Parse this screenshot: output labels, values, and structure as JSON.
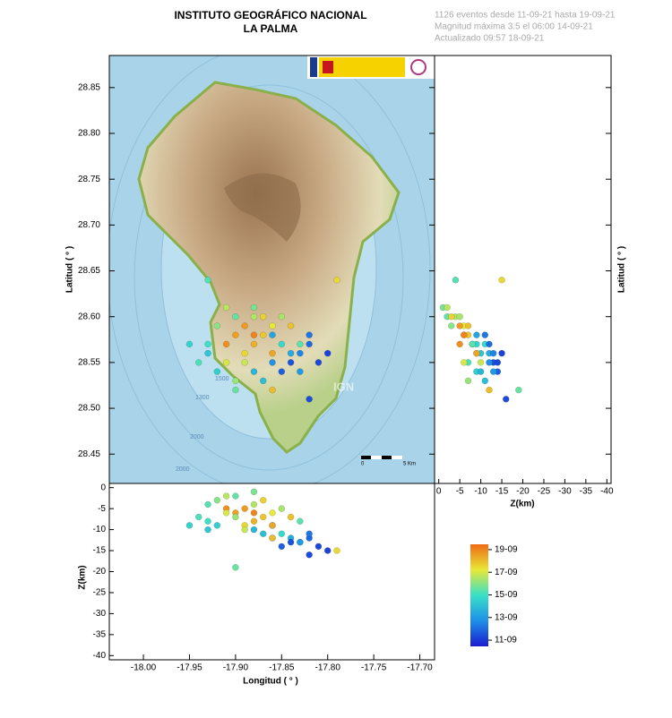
{
  "header": {
    "title": "INSTITUTO GEOGRÁFICO NACIONAL",
    "subtitle": "LA PALMA",
    "info": [
      "1126 eventos desde 11-09-21 hasta 19-09-21",
      "Magnitud máxima 3.5 el 06:00 14-09-21",
      "Actualizado   09:57  18-09-21"
    ]
  },
  "map": {
    "lat_label": "Latitud ( ° )",
    "lon_label": "Longitud ( ° )",
    "z_label": "Z(km)",
    "xlim": [
      -18.037,
      -17.684
    ],
    "ylim": [
      28.418,
      28.885
    ],
    "zlim": [
      1,
      -41
    ],
    "xticks": [
      {
        "value": -18.0,
        "label": "-18.00"
      },
      {
        "value": -17.95,
        "label": "-17.95"
      },
      {
        "value": -17.9,
        "label": "-17.90"
      },
      {
        "value": -17.85,
        "label": "-17.85"
      },
      {
        "value": -17.8,
        "label": "-17.80"
      },
      {
        "value": -17.75,
        "label": "-17.75"
      },
      {
        "value": -17.7,
        "label": "-17.70"
      }
    ],
    "yticks": [
      {
        "value": 28.45,
        "label": "28.45"
      },
      {
        "value": 28.5,
        "label": "28.50"
      },
      {
        "value": 28.55,
        "label": "28.55"
      },
      {
        "value": 28.6,
        "label": "28.60"
      },
      {
        "value": 28.65,
        "label": "28.65"
      },
      {
        "value": 28.7,
        "label": "28.70"
      },
      {
        "value": 28.75,
        "label": "28.75"
      },
      {
        "value": 28.8,
        "label": "28.80"
      },
      {
        "value": 28.85,
        "label": "28.85"
      }
    ],
    "zticks": [
      0,
      -5,
      -10,
      -15,
      -20,
      -25,
      -30,
      -35,
      -40
    ],
    "contour_labels": [
      "1500",
      "1300",
      "2000",
      "2000"
    ],
    "watermark": "IGN",
    "scale_labels": [
      "0",
      "5 Km"
    ],
    "points": [
      {
        "lon": -17.9,
        "lat": 28.58,
        "depth": -6,
        "day": 18.5
      },
      {
        "lon": -17.88,
        "lat": 28.57,
        "depth": -8,
        "day": 18.2
      },
      {
        "lon": -17.87,
        "lat": 28.58,
        "depth": -7,
        "day": 17.8
      },
      {
        "lon": -17.89,
        "lat": 28.56,
        "depth": -9,
        "day": 17.5
      },
      {
        "lon": -17.91,
        "lat": 28.57,
        "depth": -5,
        "day": 18.8
      },
      {
        "lon": -17.86,
        "lat": 28.59,
        "depth": -6,
        "day": 17.2
      },
      {
        "lon": -17.88,
        "lat": 28.6,
        "depth": -4,
        "day": 16.5
      },
      {
        "lon": -17.92,
        "lat": 28.59,
        "depth": -3,
        "day": 16.0
      },
      {
        "lon": -17.9,
        "lat": 28.6,
        "depth": -2,
        "day": 15.5
      },
      {
        "lon": -17.93,
        "lat": 28.57,
        "depth": -8,
        "day": 15.0
      },
      {
        "lon": -17.94,
        "lat": 28.55,
        "depth": -7,
        "day": 15.2
      },
      {
        "lon": -17.92,
        "lat": 28.54,
        "depth": -9,
        "day": 14.5
      },
      {
        "lon": -17.89,
        "lat": 28.55,
        "depth": -10,
        "day": 16.8
      },
      {
        "lon": -17.85,
        "lat": 28.57,
        "depth": -11,
        "day": 14.8
      },
      {
        "lon": -17.84,
        "lat": 28.56,
        "depth": -12,
        "day": 13.5
      },
      {
        "lon": -17.83,
        "lat": 28.56,
        "depth": -13,
        "day": 12.5
      },
      {
        "lon": -17.82,
        "lat": 28.57,
        "depth": -12,
        "day": 12.0
      },
      {
        "lon": -17.84,
        "lat": 28.55,
        "depth": -13,
        "day": 11.5
      },
      {
        "lon": -17.86,
        "lat": 28.55,
        "depth": -12,
        "day": 12.8
      },
      {
        "lon": -17.85,
        "lat": 28.54,
        "depth": -14,
        "day": 11.8
      },
      {
        "lon": -17.81,
        "lat": 28.55,
        "depth": -14,
        "day": 11.3
      },
      {
        "lon": -17.8,
        "lat": 28.56,
        "depth": -15,
        "day": 11.2
      },
      {
        "lon": -17.83,
        "lat": 28.54,
        "depth": -13,
        "day": 13.0
      },
      {
        "lon": -17.87,
        "lat": 28.53,
        "depth": -11,
        "day": 14.0
      },
      {
        "lon": -17.88,
        "lat": 28.54,
        "depth": -10,
        "day": 13.8
      },
      {
        "lon": -17.86,
        "lat": 28.52,
        "depth": -12,
        "day": 18.0
      },
      {
        "lon": -17.9,
        "lat": 28.53,
        "depth": -7,
        "day": 16.2
      },
      {
        "lon": -17.91,
        "lat": 28.55,
        "depth": -6,
        "day": 17.0
      },
      {
        "lon": -17.93,
        "lat": 28.56,
        "depth": -10,
        "day": 14.2
      },
      {
        "lon": -17.95,
        "lat": 28.57,
        "depth": -9,
        "day": 14.6
      },
      {
        "lon": -17.89,
        "lat": 28.59,
        "depth": -5,
        "day": 18.6
      },
      {
        "lon": -17.87,
        "lat": 28.6,
        "depth": -3,
        "day": 17.6
      },
      {
        "lon": -17.85,
        "lat": 28.6,
        "depth": -5,
        "day": 16.4
      },
      {
        "lon": -17.86,
        "lat": 28.58,
        "depth": -9,
        "day": 13.3
      },
      {
        "lon": -17.82,
        "lat": 28.58,
        "depth": -11,
        "day": 12.2
      },
      {
        "lon": -17.88,
        "lat": 28.61,
        "depth": -1,
        "day": 15.8
      },
      {
        "lon": -17.91,
        "lat": 28.61,
        "depth": -2,
        "day": 16.6
      },
      {
        "lon": -17.83,
        "lat": 28.57,
        "depth": -8,
        "day": 15.4
      },
      {
        "lon": -17.82,
        "lat": 28.51,
        "depth": -16,
        "day": 11.4
      },
      {
        "lon": -17.79,
        "lat": 28.64,
        "depth": -15,
        "day": 17.5
      },
      {
        "lon": -17.93,
        "lat": 28.64,
        "depth": -4,
        "day": 15.3
      },
      {
        "lon": -17.9,
        "lat": 28.52,
        "depth": -19,
        "day": 15.6
      },
      {
        "lon": -17.84,
        "lat": 28.59,
        "depth": -7,
        "day": 17.9
      },
      {
        "lon": -17.88,
        "lat": 28.58,
        "depth": -6,
        "day": 19.0
      },
      {
        "lon": -17.86,
        "lat": 28.56,
        "depth": -9,
        "day": 18.4
      }
    ]
  },
  "colorbar": {
    "lim": [
      10.45,
      19.47
    ],
    "ticks": [
      {
        "value": 19,
        "label": "19-09"
      },
      {
        "value": 17,
        "label": "17-09"
      },
      {
        "value": 15,
        "label": "15-09"
      },
      {
        "value": 13,
        "label": "13-09"
      },
      {
        "value": 11,
        "label": "11-09"
      }
    ],
    "colors": [
      "#1c1cd0",
      "#1e8fe8",
      "#38e0c8",
      "#e8e838",
      "#f06a14"
    ]
  }
}
